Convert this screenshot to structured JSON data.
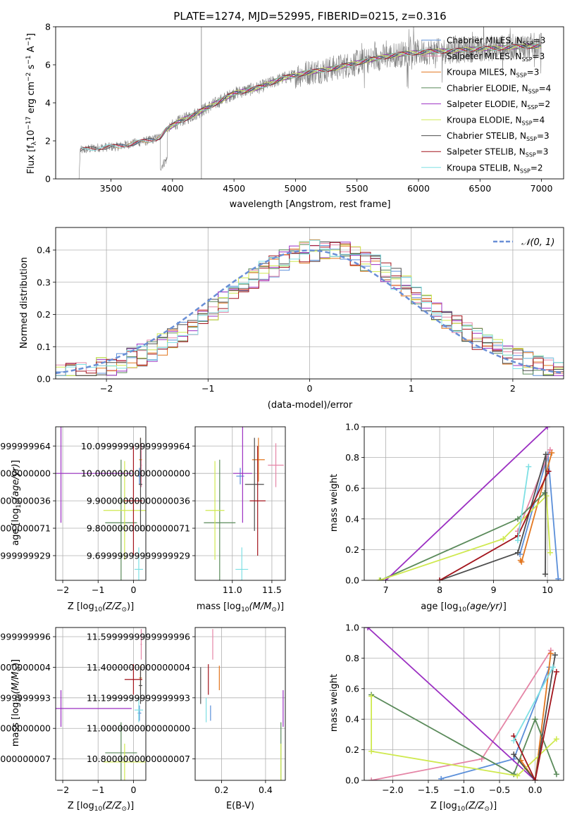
{
  "colors": {
    "chabrier_miles": "#5b8fd9",
    "salpeter_miles": "#e585a6",
    "kroupa_miles": "#e2761f",
    "chabrier_elodie": "#5a8a5a",
    "salpeter_elodie": "#9b2fc2",
    "kroupa_elodie": "#cfe94f",
    "chabrier_stelib": "#4d4d4d",
    "salpeter_stelib": "#a3141c",
    "kroupa_stelib": "#7ee0e4",
    "data": "#808080",
    "normal": "#6a8fd6"
  },
  "chart_data": [
    {
      "id": "spectrum",
      "type": "line",
      "title": "PLATE=1274, MJD=52995, FIBERID=0215, z=0.316",
      "xlabel": "wavelength [Angstrom, rest frame]",
      "ylabel": "Flux [f_λ 10^-17 erg cm^-2 s^-1 A^-1]",
      "xlim": [
        3050,
        7180
      ],
      "ylim": [
        0,
        8
      ],
      "xticks": [
        3500,
        4000,
        4500,
        5000,
        5500,
        6000,
        6500,
        7000
      ],
      "yticks": [
        0,
        2,
        4,
        6,
        8
      ],
      "grid": false,
      "legend_position": "top-right",
      "legend": [
        {
          "name": "Chabrier MILES, N_SSP=3",
          "base": "Chabrier MILES, N",
          "n": "3",
          "color_key": "chabrier_miles"
        },
        {
          "name": "Salpeter MILES, N_SSP=3",
          "base": "Salpeter MILES, N",
          "n": "3",
          "color_key": "salpeter_miles"
        },
        {
          "name": "Kroupa MILES, N_SSP=3",
          "base": "Kroupa MILES, N",
          "n": "3",
          "color_key": "kroupa_miles"
        },
        {
          "name": "Chabrier ELODIE, N_SSP=4",
          "base": "Chabrier ELODIE, N",
          "n": "4",
          "color_key": "chabrier_elodie"
        },
        {
          "name": "Salpeter ELODIE, N_SSP=2",
          "base": "Salpeter ELODIE, N",
          "n": "2",
          "color_key": "salpeter_elodie"
        },
        {
          "name": "Kroupa ELODIE, N_SSP=4",
          "base": "Kroupa ELODIE, N",
          "n": "4",
          "color_key": "kroupa_elodie"
        },
        {
          "name": "Chabrier STELIB, N_SSP=3",
          "base": "Chabrier STELIB, N",
          "n": "3",
          "color_key": "chabrier_stelib"
        },
        {
          "name": "Salpeter STELIB, N_SSP=3",
          "base": "Salpeter STELIB, N",
          "n": "3",
          "color_key": "salpeter_stelib"
        },
        {
          "name": "Kroupa STELIB, N_SSP=2",
          "base": "Kroupa STELIB, N",
          "n": "2",
          "color_key": "kroupa_stelib"
        }
      ],
      "continuum": [
        [
          3250,
          1.5
        ],
        [
          3400,
          1.65
        ],
        [
          3550,
          1.7
        ],
        [
          3700,
          1.9
        ],
        [
          3800,
          2.0
        ],
        [
          3900,
          2.2
        ],
        [
          3950,
          2.6
        ],
        [
          4050,
          3.0
        ],
        [
          4150,
          3.3
        ],
        [
          4300,
          3.8
        ],
        [
          4500,
          4.5
        ],
        [
          4700,
          4.8
        ],
        [
          4900,
          5.3
        ],
        [
          5100,
          5.6
        ],
        [
          5300,
          5.8
        ],
        [
          5500,
          6.1
        ],
        [
          5700,
          6.4
        ],
        [
          5900,
          6.6
        ],
        [
          6100,
          6.7
        ],
        [
          6300,
          6.75
        ],
        [
          6500,
          6.85
        ],
        [
          6700,
          6.9
        ],
        [
          6800,
          6.95
        ],
        [
          7000,
          7.0
        ]
      ]
    },
    {
      "id": "histogram",
      "type": "histogram",
      "xlabel": "(data-model)/error",
      "ylabel": "Normed distribution",
      "xlim": [
        -2.5,
        2.5
      ],
      "ylim": [
        0,
        0.47
      ],
      "xticks": [
        -2,
        -1,
        0,
        1,
        2
      ],
      "yticks": [
        0.0,
        0.1,
        0.2,
        0.3,
        0.4
      ],
      "grid": true,
      "legend_position": "top-right",
      "normal_label": "𝒩(0, 1)",
      "bin_width": 0.1
    },
    {
      "id": "age_vs_Z",
      "type": "scatter",
      "xlabel": "Z [log10(Z/Z⊙)]",
      "ylabel": "age [log10(age/yr)]",
      "xlim": [
        -2.2,
        0.35
      ],
      "ylim": [
        9.61,
        10.17
      ],
      "xticks": [
        -2,
        -1,
        0
      ],
      "yticks": [
        9.7,
        9.8,
        9.9,
        10.0,
        10.1
      ],
      "grid": true
    },
    {
      "id": "age_vs_mass",
      "type": "scatter",
      "xlabel": "mass [log10(M/M⊙)]",
      "ylabel": "",
      "xlim": [
        10.53,
        11.67
      ],
      "ylim": [
        9.61,
        10.17
      ],
      "xticks": [
        11.0,
        11.5
      ],
      "yticks": [
        9.7,
        9.8,
        9.9,
        10.0,
        10.1
      ],
      "grid": true
    },
    {
      "id": "weight_vs_age",
      "type": "line",
      "xlabel": "age [log10(age/yr)]",
      "ylabel": "mass weight",
      "xlim": [
        6.6,
        10.3
      ],
      "ylim": [
        0,
        1
      ],
      "xticks": [
        7,
        8,
        9,
        10
      ],
      "yticks": [
        0.0,
        0.2,
        0.4,
        0.6,
        0.8,
        1.0
      ],
      "grid": true
    },
    {
      "id": "mass_vs_Z",
      "type": "scatter",
      "xlabel": "Z [log10(Z/Z⊙)]",
      "ylabel": "mass [log10(M/M⊙)]",
      "xlim": [
        -2.2,
        0.35
      ],
      "ylim": [
        10.66,
        11.66
      ],
      "xticks": [
        -2,
        -1,
        0
      ],
      "yticks": [
        10.8,
        11.0,
        11.2,
        11.4,
        11.6
      ],
      "grid": true
    },
    {
      "id": "mass_vs_ebv",
      "type": "scatter",
      "xlabel": "E(B-V)",
      "ylabel": "",
      "xlim": [
        0.08,
        0.49
      ],
      "ylim": [
        10.66,
        11.66
      ],
      "xticks": [
        0.2,
        0.4
      ],
      "yticks": [
        10.8,
        11.0,
        11.2,
        11.4,
        11.6
      ],
      "grid": true
    },
    {
      "id": "weight_vs_Z",
      "type": "line",
      "xlabel": "Z [log10(Z/Z⊙)]",
      "ylabel": "mass weight",
      "xlim": [
        -2.4,
        0.4
      ],
      "ylim": [
        0,
        1
      ],
      "xticks": [
        -2.0,
        -1.5,
        -1.0,
        -0.5,
        0.0
      ],
      "yticks": [
        0.0,
        0.2,
        0.4,
        0.6,
        0.8,
        1.0
      ],
      "grid": true
    }
  ],
  "fits": [
    {
      "key": "chabrier_miles",
      "Z": 0.17,
      "Zerr": 0.05,
      "age": 9.99,
      "ageErr": 0.03,
      "mass": 11.1,
      "massErr": 0.05,
      "ebv": 0.15,
      "ebvErr": 0.0,
      "ageW": [
        [
          9.49,
          0.17
        ],
        [
          10.01,
          0.82
        ],
        [
          10.2,
          0.01
        ]
      ],
      "zW": [
        [
          -1.32,
          0.01
        ],
        [
          -0.3,
          0.14
        ],
        [
          0.2,
          0.74
        ]
      ]
    },
    {
      "key": "salpeter_miles",
      "Z": 0.22,
      "Zerr": 0.02,
      "age": 10.03,
      "ageErr": 0.08,
      "mass": 11.55,
      "massErr": 0.1,
      "ebv": 0.16,
      "ebvErr": 0.0,
      "ageW": [
        [
          9.45,
          0.32
        ],
        [
          10.05,
          0.85
        ]
      ],
      "zW": [
        [
          -2.3,
          0.0
        ],
        [
          -0.75,
          0.14
        ],
        [
          0.22,
          0.85
        ]
      ]
    },
    {
      "key": "kroupa_miles",
      "Z": 0.2,
      "Zerr": 0.04,
      "age": 10.05,
      "ageErr": 0.08,
      "mass": 11.33,
      "massErr": 0.08,
      "ebv": 0.19,
      "ebvErr": 0.0,
      "ageW": [
        [
          9.5,
          0.13
        ],
        [
          9.52,
          0.12
        ],
        [
          10.08,
          0.83
        ]
      ],
      "zW": [
        [
          -0.2,
          0.13
        ],
        [
          0.0,
          0.0
        ],
        [
          0.22,
          0.83
        ]
      ]
    },
    {
      "key": "chabrier_elodie",
      "Z": -0.35,
      "Zerr": 0.45,
      "age": 9.82,
      "ageErr": 0.23,
      "mass": 10.84,
      "massErr": 0.2,
      "ebv": 0.47,
      "ebvErr": 0.0,
      "ageW": [
        [
          6.9,
          0.0
        ],
        [
          9.45,
          0.4
        ],
        [
          9.95,
          0.57
        ]
      ],
      "zW": [
        [
          -2.3,
          0.56
        ],
        [
          -0.3,
          0.04
        ],
        [
          0.0,
          0.4
        ],
        [
          0.3,
          0.04
        ]
      ]
    },
    {
      "key": "salpeter_elodie",
      "Z": -2.05,
      "Zerr": 2.0,
      "age": 10.0,
      "ageErr": 0.18,
      "mass": 11.13,
      "massErr": 0.12,
      "ebv": 0.48,
      "ebvErr": 0.0,
      "ageW": [
        [
          7.0,
          0.0
        ],
        [
          10.0,
          1.0
        ]
      ],
      "zW": [
        [
          -2.35,
          1.0
        ],
        [
          0.0,
          0.0
        ]
      ]
    },
    {
      "key": "kroupa_elodie",
      "Z": -0.25,
      "Zerr": 0.6,
      "age": 9.865,
      "ageErr": 0.18,
      "mass": 10.78,
      "massErr": 0.12,
      "ebv": 0.47,
      "ebvErr": 0.0,
      "ageW": [
        [
          6.88,
          0.0
        ],
        [
          9.18,
          0.27
        ],
        [
          9.98,
          0.55
        ],
        [
          10.05,
          0.18
        ]
      ],
      "zW": [
        [
          -2.3,
          0.55
        ],
        [
          -2.3,
          0.19
        ],
        [
          -0.25,
          0.03
        ],
        [
          0.3,
          0.27
        ]
      ]
    },
    {
      "key": "chabrier_stelib",
      "Z": 0.2,
      "Zerr": 0.05,
      "age": 9.96,
      "ageErr": 0.17,
      "mass": 11.28,
      "massErr": 0.12,
      "ebv": 0.105,
      "ebvErr": 0.0,
      "ageW": [
        [
          8.0,
          0.0
        ],
        [
          9.45,
          0.18
        ],
        [
          9.97,
          0.82
        ],
        [
          9.96,
          0.04
        ]
      ],
      "zW": [
        [
          -0.3,
          0.17
        ],
        [
          0.0,
          0.0
        ],
        [
          0.28,
          0.82
        ]
      ]
    },
    {
      "key": "salpeter_stelib",
      "Z": 0.0,
      "Zerr": 0.25,
      "age": 9.9,
      "ageErr": 0.2,
      "mass": 11.32,
      "massErr": 0.1,
      "ebv": 0.14,
      "ebvErr": 0.0,
      "ageW": [
        [
          8.0,
          0.0
        ],
        [
          9.45,
          0.29
        ],
        [
          10.02,
          0.71
        ]
      ],
      "zW": [
        [
          -0.3,
          0.29
        ],
        [
          0.0,
          0.0
        ],
        [
          0.3,
          0.71
        ]
      ]
    },
    {
      "key": "kroupa_stelib",
      "Z": 0.15,
      "Zerr": 0.12,
      "age": 9.65,
      "ageErr": 0.08,
      "mass": 11.12,
      "massErr": 0.08,
      "ebv": 0.13,
      "ebvErr": 0.0,
      "ageW": [
        [
          9.45,
          0.26
        ],
        [
          9.65,
          0.74
        ]
      ],
      "zW": [
        [
          -0.3,
          0.26
        ],
        [
          0.25,
          0.74
        ]
      ]
    }
  ]
}
